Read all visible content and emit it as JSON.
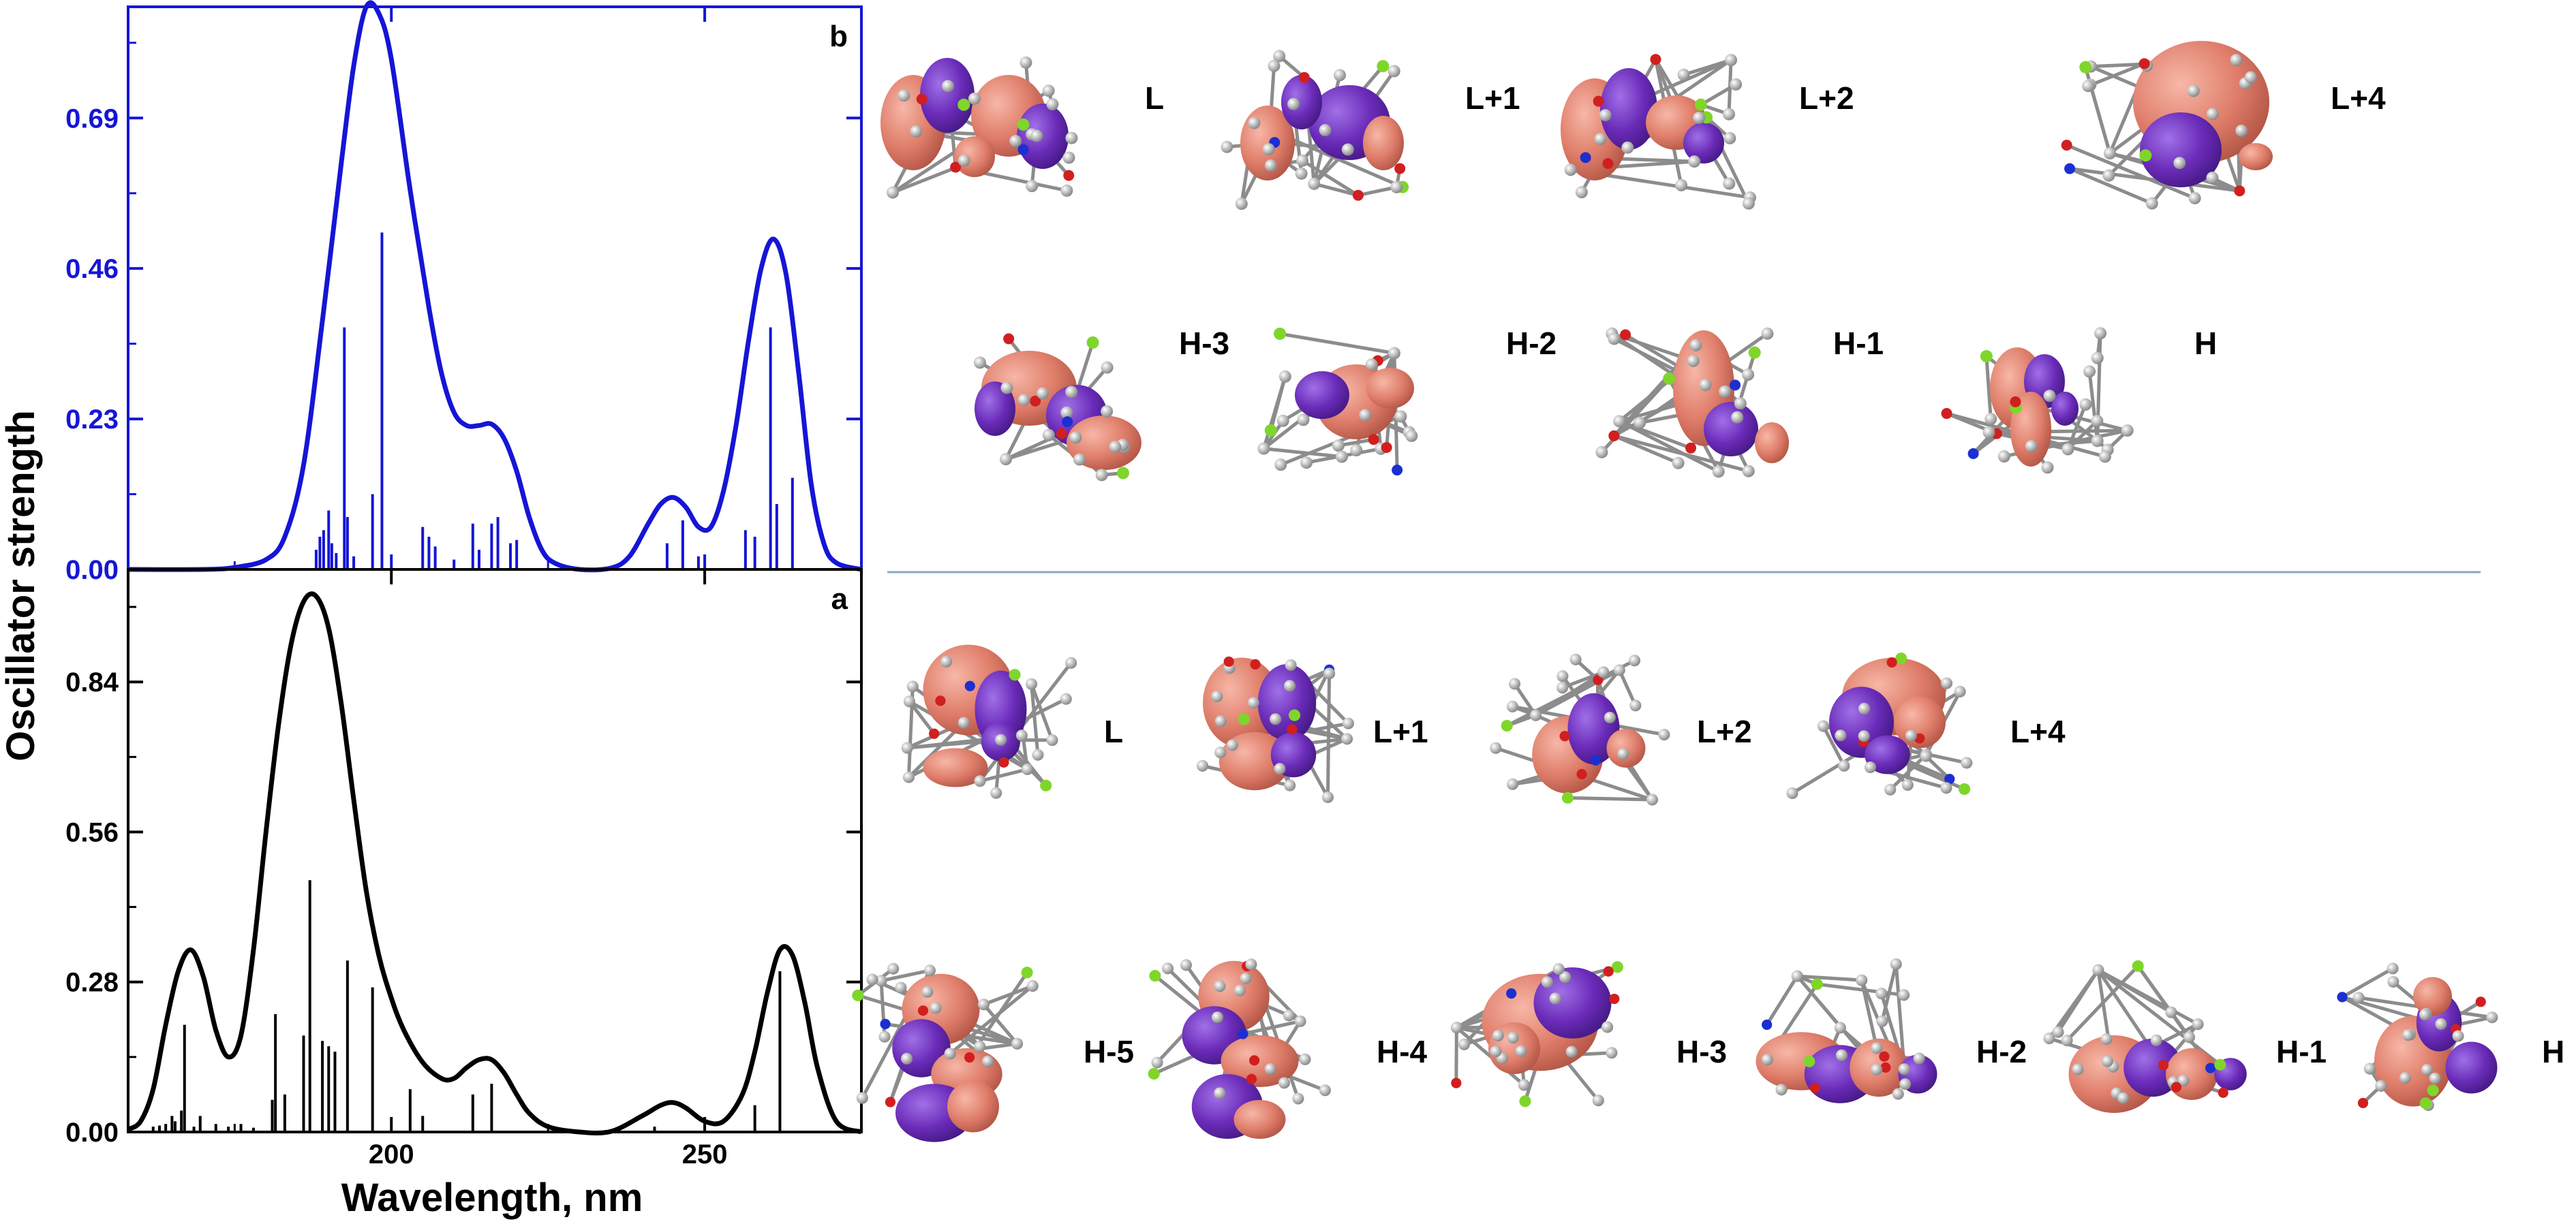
{
  "chart_data": [
    {
      "panel": "b",
      "type": "line",
      "color": "#1515d6",
      "xlim": [
        158,
        275
      ],
      "ylim": [
        0,
        0.86
      ],
      "yticks": [
        "0.00",
        "0.23",
        "0.46",
        "0.69"
      ],
      "ytick_values": [
        0,
        0.23,
        0.46,
        0.69
      ],
      "xticks": [
        "200",
        "250"
      ],
      "xtick_values": [
        200,
        250
      ],
      "curve": {
        "x": [
          158,
          170,
          175,
          180,
          183,
          186,
          189,
          192,
          194,
          196,
          198,
          200,
          203,
          206,
          208,
          210,
          212,
          214,
          216,
          218,
          220,
          222,
          224,
          226,
          230,
          235,
          238,
          241,
          243,
          245,
          247,
          249,
          251,
          253,
          255,
          257,
          259,
          261,
          263,
          265,
          267,
          269,
          271,
          275
        ],
        "y": [
          0,
          0,
          0.003,
          0.015,
          0.05,
          0.16,
          0.38,
          0.62,
          0.77,
          0.86,
          0.85,
          0.78,
          0.58,
          0.4,
          0.3,
          0.24,
          0.22,
          0.22,
          0.222,
          0.2,
          0.15,
          0.08,
          0.03,
          0.01,
          0,
          0.002,
          0.02,
          0.07,
          0.1,
          0.11,
          0.095,
          0.065,
          0.065,
          0.12,
          0.22,
          0.35,
          0.46,
          0.505,
          0.45,
          0.3,
          0.13,
          0.04,
          0.01,
          0
        ]
      },
      "sticks": {
        "x": [
          188,
          188.6,
          189.2,
          190,
          190.5,
          191.2,
          192.5,
          193,
          194,
          197,
          198.5,
          205,
          206,
          207,
          210,
          213,
          214,
          216,
          217,
          219,
          220,
          244,
          246.5,
          249,
          256.5,
          258,
          260.5,
          261.5,
          264
        ],
        "y": [
          0.03,
          0.05,
          0.06,
          0.09,
          0.04,
          0.025,
          0.37,
          0.08,
          0.02,
          0.115,
          0.515,
          0.065,
          0.05,
          0.035,
          0.015,
          0.07,
          0.03,
          0.07,
          0.08,
          0.04,
          0.045,
          0.04,
          0.075,
          0.02,
          0.06,
          0.05,
          0.37,
          0.1,
          0.14
        ]
      }
    },
    {
      "panel": "a",
      "type": "line",
      "color": "#000000",
      "xlim": [
        158,
        275
      ],
      "ylim": [
        0,
        1.05
      ],
      "yticks": [
        "0.00",
        "0.28",
        "0.56",
        "0.84"
      ],
      "ytick_values": [
        0,
        0.28,
        0.56,
        0.84
      ],
      "xticks": [
        "200",
        "250"
      ],
      "xtick_values": [
        200,
        250
      ],
      "curve": {
        "x": [
          158,
          160,
          162,
          164,
          166,
          168,
          170,
          172,
          174,
          176,
          178,
          180,
          182,
          184,
          186,
          188,
          190,
          192,
          194,
          196,
          198,
          200,
          202,
          205,
          208,
          210,
          212,
          214,
          216,
          218,
          220,
          222,
          225,
          230,
          235,
          240,
          243,
          245,
          247,
          250,
          253,
          256,
          258,
          260,
          262,
          264,
          266,
          268,
          271,
          275
        ],
        "y": [
          0.005,
          0.02,
          0.08,
          0.2,
          0.3,
          0.34,
          0.29,
          0.19,
          0.14,
          0.18,
          0.34,
          0.56,
          0.76,
          0.91,
          0.99,
          1.0,
          0.94,
          0.8,
          0.62,
          0.45,
          0.33,
          0.25,
          0.19,
          0.13,
          0.1,
          0.1,
          0.12,
          0.135,
          0.135,
          0.11,
          0.07,
          0.035,
          0.01,
          0,
          0.001,
          0.03,
          0.05,
          0.055,
          0.045,
          0.02,
          0.02,
          0.07,
          0.15,
          0.26,
          0.34,
          0.33,
          0.24,
          0.12,
          0.02,
          0
        ]
      },
      "sticks": {
        "x": [
          162,
          163,
          164,
          165,
          165.5,
          166.5,
          167,
          168.5,
          169.5,
          172,
          174,
          176,
          178,
          181,
          181.5,
          183,
          186,
          187,
          189,
          190,
          191,
          193,
          197,
          203,
          205,
          213,
          216,
          242,
          258,
          262
        ],
        "y": [
          0.01,
          0.012,
          0.015,
          0.03,
          0.02,
          0.04,
          0.2,
          0.01,
          0.03,
          0.015,
          0.01,
          0.015,
          0.008,
          0.06,
          0.22,
          0.07,
          0.18,
          0.47,
          0.17,
          0.16,
          0.15,
          0.32,
          0.27,
          0.08,
          0.03,
          0.07,
          0.09,
          0.01,
          0.05,
          0.3
        ]
      }
    }
  ],
  "labels": {
    "y_axis": "Oscillator strength",
    "x_axis": "Wavelength, nm",
    "panel_b": "b",
    "panel_a": "a"
  },
  "orbitals": {
    "top_row1": [
      "L",
      "L+1",
      "L+2",
      "L+4"
    ],
    "top_row2": [
      "H-3",
      "H-2",
      "H-1",
      "H"
    ],
    "bottom_row1": [
      "L",
      "L+1",
      "L+2",
      "L+4"
    ],
    "bottom_row2": [
      "H-5",
      "H-4",
      "H-3",
      "H-2",
      "H-1",
      "H"
    ]
  },
  "colors": {
    "lobe_salmon": "#df7d6a",
    "lobe_purple": "#6a2bb8",
    "atom_carbon": "#9a9a9a",
    "atom_oxygen": "#d11f1f",
    "atom_nitrogen": "#1c2fd1",
    "atom_fluorine": "#7fd62a",
    "divider": "#8aa4cc"
  }
}
